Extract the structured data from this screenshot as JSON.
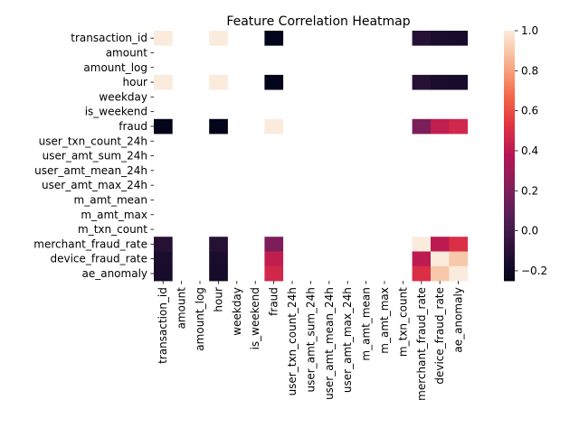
{
  "chart_data": {
    "type": "heatmap",
    "title": "Feature Correlation Heatmap",
    "xlabel": "",
    "ylabel": "",
    "labels": [
      "transaction_id",
      "amount",
      "amount_log",
      "hour",
      "weekday",
      "is_weekend",
      "fraud",
      "user_txn_count_24h",
      "user_amt_sum_24h",
      "user_amt_mean_24h",
      "user_amt_max_24h",
      "m_amt_mean",
      "m_amt_max",
      "m_txn_count",
      "merchant_fraud_rate",
      "device_fraud_rate",
      "ae_anomaly"
    ],
    "matrix": [
      [
        1.0,
        null,
        null,
        1.0,
        null,
        null,
        -0.25,
        null,
        null,
        null,
        null,
        null,
        null,
        null,
        -0.11,
        -0.16,
        -0.17
      ],
      [
        null,
        null,
        null,
        null,
        null,
        null,
        null,
        null,
        null,
        null,
        null,
        null,
        null,
        null,
        null,
        null,
        null
      ],
      [
        null,
        null,
        null,
        null,
        null,
        null,
        null,
        null,
        null,
        null,
        null,
        null,
        null,
        null,
        null,
        null,
        null
      ],
      [
        1.0,
        null,
        null,
        1.0,
        null,
        null,
        -0.25,
        null,
        null,
        null,
        null,
        null,
        null,
        null,
        -0.11,
        -0.16,
        -0.17
      ],
      [
        null,
        null,
        null,
        null,
        null,
        null,
        null,
        null,
        null,
        null,
        null,
        null,
        null,
        null,
        null,
        null,
        null
      ],
      [
        null,
        null,
        null,
        null,
        null,
        null,
        null,
        null,
        null,
        null,
        null,
        null,
        null,
        null,
        null,
        null,
        null
      ],
      [
        -0.25,
        null,
        null,
        -0.25,
        null,
        null,
        1.0,
        null,
        null,
        null,
        null,
        null,
        null,
        null,
        0.2,
        0.42,
        0.47
      ],
      [
        null,
        null,
        null,
        null,
        null,
        null,
        null,
        null,
        null,
        null,
        null,
        null,
        null,
        null,
        null,
        null,
        null
      ],
      [
        null,
        null,
        null,
        null,
        null,
        null,
        null,
        null,
        null,
        null,
        null,
        null,
        null,
        null,
        null,
        null,
        null
      ],
      [
        null,
        null,
        null,
        null,
        null,
        null,
        null,
        null,
        null,
        null,
        null,
        null,
        null,
        null,
        null,
        null,
        null
      ],
      [
        null,
        null,
        null,
        null,
        null,
        null,
        null,
        null,
        null,
        null,
        null,
        null,
        null,
        null,
        null,
        null,
        null
      ],
      [
        null,
        null,
        null,
        null,
        null,
        null,
        null,
        null,
        null,
        null,
        null,
        null,
        null,
        null,
        null,
        null,
        null
      ],
      [
        null,
        null,
        null,
        null,
        null,
        null,
        null,
        null,
        null,
        null,
        null,
        null,
        null,
        null,
        null,
        null,
        null
      ],
      [
        null,
        null,
        null,
        null,
        null,
        null,
        null,
        null,
        null,
        null,
        null,
        null,
        null,
        null,
        null,
        null,
        null
      ],
      [
        -0.11,
        null,
        null,
        -0.11,
        null,
        null,
        0.2,
        null,
        null,
        null,
        null,
        null,
        null,
        null,
        1.0,
        0.4,
        0.5
      ],
      [
        -0.16,
        null,
        null,
        -0.16,
        null,
        null,
        0.42,
        null,
        null,
        null,
        null,
        null,
        null,
        null,
        0.4,
        1.0,
        0.9
      ],
      [
        -0.17,
        null,
        null,
        -0.17,
        null,
        null,
        0.47,
        null,
        null,
        null,
        null,
        null,
        null,
        null,
        0.5,
        0.9,
        1.0
      ]
    ],
    "vmin": -0.25,
    "vmax": 1.0,
    "colorbar_ticks": [
      -0.2,
      0.0,
      0.2,
      0.4,
      0.6,
      0.8,
      1.0
    ],
    "colorbar_tick_labels": [
      "−0.2",
      "0.0",
      "0.2",
      "0.4",
      "0.6",
      "0.8",
      "1.0"
    ],
    "colormap": "rocket",
    "grid": false,
    "legend": "colorbar-right"
  }
}
